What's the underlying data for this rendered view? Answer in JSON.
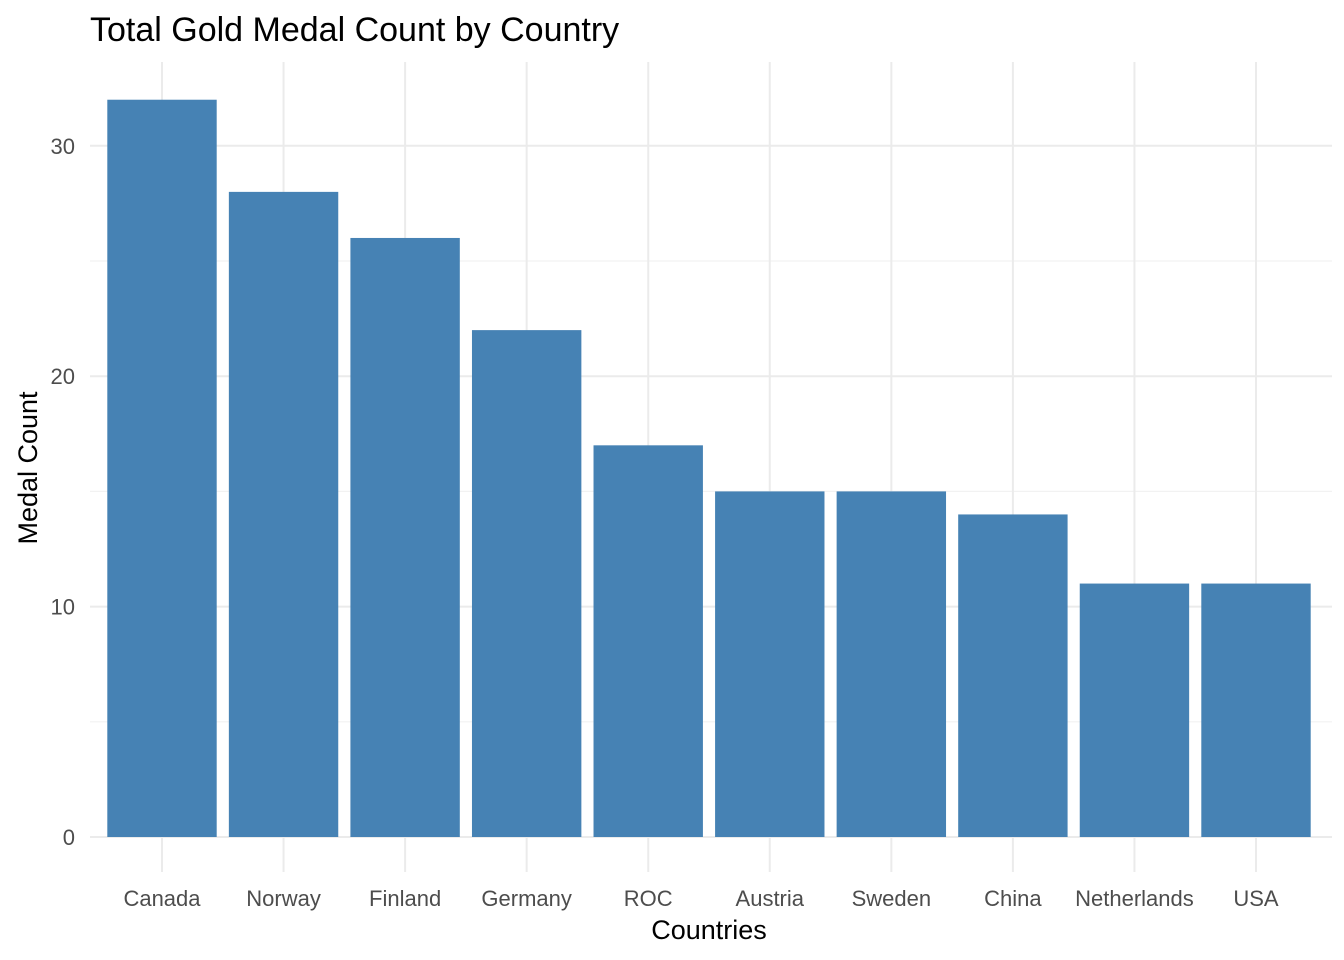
{
  "chart_data": {
    "type": "bar",
    "title": "Total Gold Medal Count by Country",
    "xlabel": "Countries",
    "ylabel": "Medal Count",
    "categories": [
      "Canada",
      "Norway",
      "Finland",
      "Germany",
      "ROC",
      "Austria",
      "Sweden",
      "China",
      "Netherlands",
      "USA"
    ],
    "values": [
      32,
      28,
      26,
      22,
      17,
      15,
      15,
      14,
      11,
      11
    ],
    "ylim": [
      0,
      33.6
    ],
    "yticks": [
      0,
      10,
      20,
      30
    ],
    "bar_color": "#4682B4",
    "grid": true,
    "legend": "none"
  }
}
